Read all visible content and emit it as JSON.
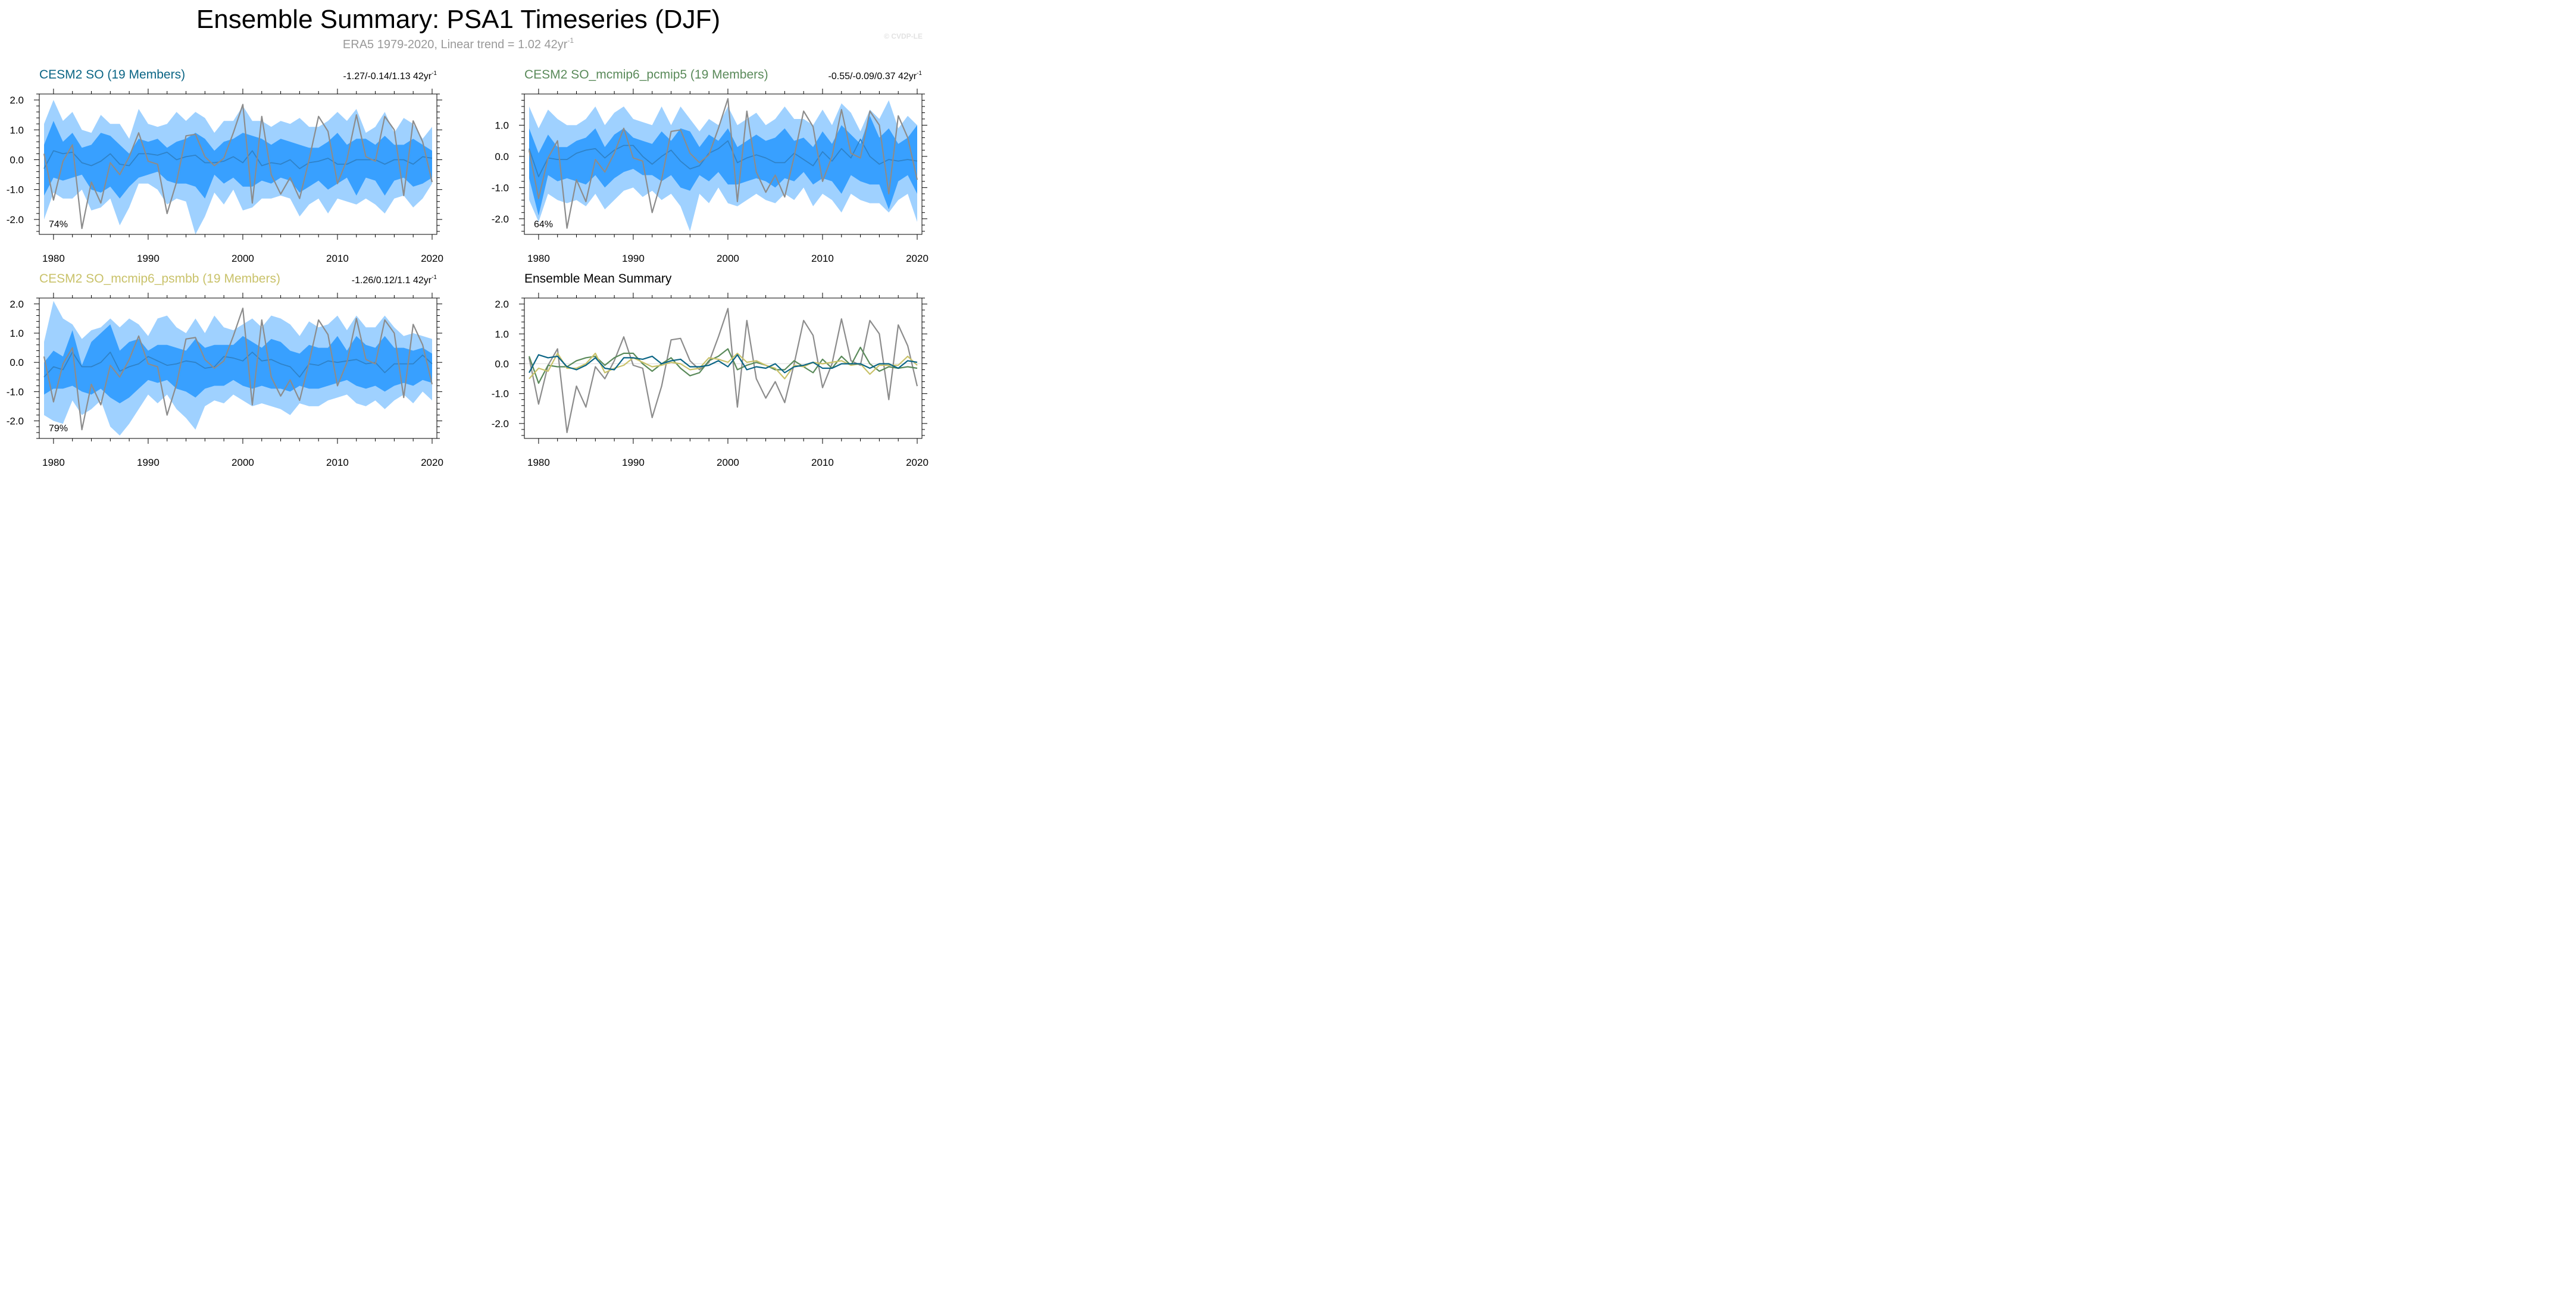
{
  "title": "Ensemble Summary: PSA1 Timeseries (DJF)",
  "subtitle_main": "ERA5 1979-2020, Linear trend = 1.02 42yr",
  "subtitle_sup": "-1",
  "watermark": "© CVDP-LE",
  "colors": {
    "outer_band": "#9fd1ff",
    "inner_band": "#38a0ff",
    "ens_mean": "#2f82c8",
    "obs": "#8c8c8c",
    "so": "#0b6585",
    "pcmip5": "#5a8a5a",
    "psmbb": "#c9c26a",
    "axis": "#000000"
  },
  "chart_data": [
    {
      "id": "so",
      "type": "area",
      "title": "CESM2 SO (19 Members)",
      "title_color": "#0b6585",
      "trend_main": "-1.27/-0.14/1.13 42yr",
      "trend_sup": "-1",
      "percent_label": "74%",
      "years": [
        1979,
        1980,
        1981,
        1982,
        1983,
        1984,
        1985,
        1986,
        1987,
        1988,
        1989,
        1990,
        1991,
        1992,
        1993,
        1994,
        1995,
        1996,
        1997,
        1998,
        1999,
        2000,
        2001,
        2002,
        2003,
        2004,
        2005,
        2006,
        2007,
        2008,
        2009,
        2010,
        2011,
        2012,
        2013,
        2014,
        2015,
        2016,
        2017,
        2018,
        2019,
        2020
      ],
      "ylim": [
        -2.5,
        2.2
      ],
      "yticks": [
        2.0,
        1.0,
        0.0,
        -1.0,
        -2.0
      ],
      "ytick_labels": [
        "2.0",
        "1.0",
        "0.0",
        "-1.0",
        "-2.0"
      ],
      "xticks": [
        1980,
        1990,
        2000,
        2010,
        2020
      ],
      "xtick_labels": [
        "1980",
        "1990",
        "2000",
        "2010",
        "2020"
      ],
      "outer_upper": [
        1.2,
        2.0,
        1.3,
        1.6,
        1.0,
        0.9,
        1.5,
        1.2,
        1.2,
        0.7,
        1.7,
        1.2,
        1.1,
        1.2,
        1.6,
        1.3,
        1.6,
        1.4,
        0.9,
        1.3,
        1.3,
        1.8,
        1.3,
        1.3,
        1.1,
        1.3,
        1.2,
        1.4,
        1.1,
        1.1,
        1.3,
        1.6,
        1.3,
        1.7,
        0.9,
        1.1,
        1.6,
        0.9,
        1.4,
        1.2,
        0.7,
        1.1
      ],
      "outer_lower": [
        -2.0,
        -1.1,
        -1.3,
        -1.3,
        -1.0,
        -1.7,
        -1.6,
        -1.3,
        -2.2,
        -1.6,
        -0.8,
        -0.8,
        -1.0,
        -1.5,
        -1.3,
        -1.4,
        -2.5,
        -1.9,
        -1.1,
        -1.5,
        -1.0,
        -1.7,
        -1.6,
        -1.3,
        -1.3,
        -1.2,
        -1.3,
        -1.9,
        -1.5,
        -1.3,
        -1.8,
        -1.3,
        -1.4,
        -1.5,
        -1.3,
        -1.5,
        -1.8,
        -1.3,
        -1.2,
        -1.6,
        -1.3,
        -0.8
      ],
      "inner_upper": [
        0.5,
        1.3,
        0.6,
        0.9,
        0.4,
        0.5,
        0.9,
        0.8,
        0.5,
        0.2,
        0.7,
        0.6,
        0.7,
        0.4,
        0.6,
        0.7,
        0.9,
        0.7,
        0.3,
        0.6,
        0.7,
        0.9,
        0.8,
        0.7,
        0.5,
        0.7,
        0.6,
        0.5,
        0.4,
        0.4,
        0.6,
        0.9,
        0.5,
        0.7,
        0.7,
        0.5,
        0.8,
        0.5,
        0.5,
        0.7,
        0.5,
        0.3
      ],
      "inner_lower": [
        -1.2,
        -0.6,
        -0.7,
        -0.6,
        -0.5,
        -1.0,
        -1.1,
        -0.9,
        -1.3,
        -0.9,
        -0.6,
        -0.5,
        -0.4,
        -0.7,
        -0.8,
        -0.8,
        -0.9,
        -1.3,
        -0.5,
        -0.8,
        -0.6,
        -0.9,
        -0.9,
        -0.7,
        -0.8,
        -0.6,
        -0.7,
        -1.1,
        -0.9,
        -0.7,
        -1.0,
        -0.8,
        -0.6,
        -1.2,
        -0.6,
        -0.7,
        -1.2,
        -0.7,
        -0.6,
        -0.9,
        -0.8,
        -0.6
      ],
      "ens_mean": [
        -0.3,
        0.3,
        0.2,
        0.25,
        -0.1,
        -0.2,
        -0.05,
        0.2,
        -0.15,
        -0.2,
        0.2,
        0.2,
        0.15,
        0.25,
        0.0,
        0.1,
        0.15,
        -0.1,
        -0.1,
        -0.05,
        0.1,
        -0.1,
        0.3,
        -0.2,
        -0.1,
        -0.15,
        0.0,
        -0.3,
        -0.1,
        -0.05,
        0.05,
        -0.15,
        -0.15,
        0.0,
        0.0,
        0.0,
        -0.15,
        0.0,
        0.0,
        -0.15,
        0.1,
        0.05
      ],
      "obs": [
        0.2,
        -1.35,
        -0.05,
        0.5,
        -2.3,
        -0.75,
        -1.45,
        -0.1,
        -0.5,
        0.1,
        0.9,
        -0.05,
        -0.15,
        -1.8,
        -0.75,
        0.8,
        0.85,
        0.1,
        -0.2,
        0.05,
        0.9,
        1.85,
        -1.45,
        1.45,
        -0.5,
        -1.15,
        -0.6,
        -1.3,
        0.0,
        1.45,
        0.95,
        -0.8,
        0.0,
        1.5,
        0.1,
        -0.05,
        1.45,
        1.0,
        -1.2,
        1.3,
        0.6,
        -0.75
      ]
    },
    {
      "id": "pcmip5",
      "type": "area",
      "title": "CESM2 SO_mcmip6_pcmip5 (19 Members)",
      "title_color": "#5a8a5a",
      "trend_main": "-0.55/-0.09/0.37 42yr",
      "trend_sup": "-1",
      "percent_label": "64%",
      "years": [
        1979,
        1980,
        1981,
        1982,
        1983,
        1984,
        1985,
        1986,
        1987,
        1988,
        1989,
        1990,
        1991,
        1992,
        1993,
        1994,
        1995,
        1996,
        1997,
        1998,
        1999,
        2000,
        2001,
        2002,
        2003,
        2004,
        2005,
        2006,
        2007,
        2008,
        2009,
        2010,
        2011,
        2012,
        2013,
        2014,
        2015,
        2016,
        2017,
        2018,
        2019,
        2020
      ],
      "ylim": [
        -2.5,
        2.0
      ],
      "yticks": [
        1.0,
        0.0,
        -1.0,
        -2.0
      ],
      "ytick_labels": [
        "1.0",
        "0.0",
        "-1.0",
        "-2.0"
      ],
      "xticks": [
        1980,
        1990,
        2000,
        2010,
        2020
      ],
      "xtick_labels": [
        "1980",
        "1990",
        "2000",
        "2010",
        "2020"
      ],
      "outer_upper": [
        1.6,
        0.9,
        1.5,
        1.2,
        1.0,
        1.0,
        1.2,
        1.6,
        1.0,
        1.4,
        1.6,
        1.2,
        1.1,
        1.0,
        1.6,
        1.0,
        1.6,
        1.2,
        0.8,
        1.2,
        1.0,
        1.6,
        1.0,
        1.2,
        1.4,
        1.0,
        1.2,
        1.6,
        1.2,
        1.2,
        1.0,
        1.5,
        1.0,
        1.7,
        1.4,
        0.8,
        1.5,
        1.2,
        1.8,
        0.9,
        1.3,
        1.0
      ],
      "outer_lower": [
        -1.4,
        -2.1,
        -1.2,
        -1.4,
        -1.5,
        -1.4,
        -1.6,
        -1.2,
        -1.7,
        -1.4,
        -1.1,
        -1.0,
        -1.3,
        -1.1,
        -1.4,
        -1.2,
        -1.6,
        -2.4,
        -1.2,
        -1.5,
        -1.0,
        -1.5,
        -1.6,
        -1.4,
        -1.2,
        -1.4,
        -1.5,
        -1.2,
        -1.4,
        -1.0,
        -1.6,
        -1.2,
        -1.4,
        -1.8,
        -1.2,
        -1.4,
        -1.5,
        -1.5,
        -1.8,
        -1.4,
        -1.2,
        -2.1
      ],
      "inner_upper": [
        0.9,
        0.1,
        0.7,
        0.3,
        0.3,
        0.5,
        0.6,
        0.9,
        0.3,
        0.7,
        0.9,
        0.6,
        0.5,
        0.4,
        0.8,
        0.5,
        0.9,
        0.8,
        0.3,
        0.7,
        0.5,
        0.9,
        0.3,
        0.5,
        0.7,
        0.5,
        0.6,
        0.9,
        0.5,
        0.6,
        0.3,
        0.8,
        0.4,
        1.0,
        0.7,
        0.4,
        1.3,
        0.6,
        0.9,
        0.4,
        0.6,
        1.0
      ],
      "inner_lower": [
        -0.7,
        -1.9,
        -0.6,
        -0.8,
        -0.7,
        -0.8,
        -0.9,
        -0.6,
        -1.0,
        -0.7,
        -0.5,
        -0.4,
        -0.6,
        -0.6,
        -0.8,
        -0.6,
        -1.0,
        -1.1,
        -0.6,
        -0.8,
        -0.5,
        -0.9,
        -0.9,
        -0.8,
        -0.7,
        -0.8,
        -1.0,
        -0.7,
        -0.8,
        -0.5,
        -0.9,
        -0.7,
        -0.8,
        -1.2,
        -0.6,
        -0.8,
        -0.9,
        -0.9,
        -1.7,
        -0.8,
        -0.6,
        -1.2
      ],
      "ens_mean": [
        0.25,
        -0.65,
        -0.05,
        -0.1,
        -0.1,
        0.1,
        0.2,
        0.25,
        -0.05,
        0.2,
        0.35,
        0.35,
        0.0,
        -0.25,
        0.0,
        0.2,
        -0.15,
        -0.4,
        -0.3,
        0.1,
        0.25,
        0.5,
        -0.2,
        -0.05,
        0.05,
        -0.05,
        -0.2,
        -0.2,
        0.1,
        -0.1,
        -0.3,
        0.15,
        -0.15,
        0.25,
        -0.05,
        0.55,
        0.0,
        -0.25,
        -0.1,
        -0.15,
        -0.1,
        -0.15
      ],
      "obs": [
        0.2,
        -1.35,
        -0.05,
        0.5,
        -2.3,
        -0.75,
        -1.45,
        -0.1,
        -0.5,
        0.1,
        0.9,
        -0.05,
        -0.15,
        -1.8,
        -0.75,
        0.8,
        0.85,
        0.1,
        -0.2,
        0.05,
        0.9,
        1.85,
        -1.45,
        1.45,
        -0.5,
        -1.15,
        -0.6,
        -1.3,
        0.0,
        1.45,
        0.95,
        -0.8,
        0.0,
        1.5,
        0.1,
        -0.05,
        1.45,
        1.0,
        -1.2,
        1.3,
        0.6,
        -0.75
      ]
    },
    {
      "id": "psmbb",
      "type": "area",
      "title": "CESM2 SO_mcmip6_psmbb (19 Members)",
      "title_color": "#c9c26a",
      "trend_main": "-1.26/0.12/1.1 42yr",
      "trend_sup": "-1",
      "percent_label": "79%",
      "years": [
        1979,
        1980,
        1981,
        1982,
        1983,
        1984,
        1985,
        1986,
        1987,
        1988,
        1989,
        1990,
        1991,
        1992,
        1993,
        1994,
        1995,
        1996,
        1997,
        1998,
        1999,
        2000,
        2001,
        2002,
        2003,
        2004,
        2005,
        2006,
        2007,
        2008,
        2009,
        2010,
        2011,
        2012,
        2013,
        2014,
        2015,
        2016,
        2017,
        2018,
        2019,
        2020
      ],
      "ylim": [
        -2.6,
        2.2
      ],
      "yticks": [
        2.0,
        1.0,
        0.0,
        -1.0,
        -2.0
      ],
      "ytick_labels": [
        "2.0",
        "1.0",
        "0.0",
        "-1.0",
        "-2.0"
      ],
      "xticks": [
        1980,
        1990,
        2000,
        2010,
        2020
      ],
      "xtick_labels": [
        "1980",
        "1990",
        "2000",
        "2010",
        "2020"
      ],
      "outer_upper": [
        0.7,
        2.1,
        1.5,
        1.3,
        0.8,
        1.1,
        1.2,
        1.5,
        1.2,
        1.5,
        1.3,
        0.9,
        1.5,
        1.6,
        1.2,
        1.0,
        1.5,
        1.0,
        1.6,
        1.2,
        1.1,
        1.3,
        1.5,
        1.2,
        1.6,
        1.5,
        1.3,
        0.9,
        1.4,
        1.2,
        1.3,
        1.6,
        1.1,
        1.6,
        1.2,
        1.2,
        1.6,
        1.2,
        0.9,
        1.0,
        0.9,
        0.8
      ],
      "outer_lower": [
        -1.8,
        -2.0,
        -2.1,
        -1.3,
        -1.8,
        -1.6,
        -1.3,
        -2.2,
        -2.5,
        -2.1,
        -1.6,
        -1.1,
        -1.4,
        -1.1,
        -1.6,
        -1.9,
        -2.3,
        -1.5,
        -1.3,
        -1.4,
        -1.1,
        -1.3,
        -1.5,
        -1.4,
        -1.5,
        -1.6,
        -1.8,
        -1.4,
        -1.5,
        -1.5,
        -1.3,
        -1.2,
        -1.1,
        -1.4,
        -1.5,
        -1.3,
        -1.6,
        -1.3,
        -1.1,
        -1.4,
        -1.0,
        -1.3
      ],
      "inner_upper": [
        0.0,
        0.4,
        0.2,
        1.1,
        -0.1,
        0.7,
        1.0,
        1.3,
        0.4,
        0.7,
        0.8,
        0.4,
        0.6,
        0.6,
        0.5,
        0.4,
        0.8,
        0.5,
        0.6,
        0.6,
        0.6,
        0.9,
        0.7,
        0.5,
        0.8,
        0.7,
        0.4,
        0.3,
        0.6,
        0.5,
        0.5,
        0.9,
        0.4,
        0.9,
        0.6,
        0.5,
        0.9,
        0.5,
        0.5,
        0.4,
        0.5,
        0.3
      ],
      "inner_lower": [
        -1.1,
        -0.9,
        -0.9,
        -0.8,
        -1.0,
        -1.1,
        -0.9,
        -1.2,
        -1.4,
        -1.2,
        -0.9,
        -0.6,
        -0.7,
        -0.6,
        -0.9,
        -1.0,
        -1.2,
        -0.9,
        -0.8,
        -0.8,
        -0.6,
        -0.8,
        -0.9,
        -0.8,
        -0.9,
        -0.9,
        -1.0,
        -0.8,
        -0.9,
        -0.9,
        -0.8,
        -0.7,
        -0.6,
        -0.8,
        -0.9,
        -0.8,
        -1.0,
        -0.8,
        -0.7,
        -0.8,
        -0.6,
        -0.7
      ],
      "ens_mean": [
        -0.5,
        -0.15,
        -0.25,
        0.35,
        -0.15,
        -0.15,
        0.0,
        0.35,
        -0.3,
        -0.15,
        -0.05,
        0.2,
        0.05,
        -0.1,
        -0.05,
        0.05,
        0.0,
        -0.2,
        -0.15,
        0.2,
        0.15,
        0.05,
        0.35,
        0.05,
        0.1,
        -0.05,
        -0.15,
        -0.5,
        -0.05,
        -0.1,
        0.05,
        0.0,
        0.05,
        0.1,
        -0.05,
        0.0,
        -0.35,
        -0.05,
        -0.05,
        -0.05,
        0.25,
        -0.05
      ],
      "obs": [
        0.2,
        -1.35,
        -0.05,
        0.5,
        -2.3,
        -0.75,
        -1.45,
        -0.1,
        -0.5,
        0.1,
        0.9,
        -0.05,
        -0.15,
        -1.8,
        -0.75,
        0.8,
        0.85,
        0.1,
        -0.2,
        0.05,
        0.9,
        1.85,
        -1.45,
        1.45,
        -0.5,
        -1.15,
        -0.6,
        -1.3,
        0.0,
        1.45,
        0.95,
        -0.8,
        0.0,
        1.5,
        0.1,
        -0.05,
        1.45,
        1.0,
        -1.2,
        1.3,
        0.6,
        -0.75
      ]
    },
    {
      "id": "summary",
      "type": "line",
      "title": "Ensemble Mean Summary",
      "title_color": "#000000",
      "years": [
        1979,
        1980,
        1981,
        1982,
        1983,
        1984,
        1985,
        1986,
        1987,
        1988,
        1989,
        1990,
        1991,
        1992,
        1993,
        1994,
        1995,
        1996,
        1997,
        1998,
        1999,
        2000,
        2001,
        2002,
        2003,
        2004,
        2005,
        2006,
        2007,
        2008,
        2009,
        2010,
        2011,
        2012,
        2013,
        2014,
        2015,
        2016,
        2017,
        2018,
        2019,
        2020
      ],
      "ylim": [
        -2.5,
        2.2
      ],
      "yticks": [
        2.0,
        1.0,
        0.0,
        -1.0,
        -2.0
      ],
      "ytick_labels": [
        "2.0",
        "1.0",
        "0.0",
        "-1.0",
        "-2.0"
      ],
      "xticks": [
        1980,
        1990,
        2000,
        2010,
        2020
      ],
      "xtick_labels": [
        "1980",
        "1990",
        "2000",
        "2010",
        "2020"
      ],
      "series": [
        {
          "name": "ERA5",
          "color": "#8c8c8c",
          "values": [
            0.2,
            -1.35,
            -0.05,
            0.5,
            -2.3,
            -0.75,
            -1.45,
            -0.1,
            -0.5,
            0.1,
            0.9,
            -0.05,
            -0.15,
            -1.8,
            -0.75,
            0.8,
            0.85,
            0.1,
            -0.2,
            0.05,
            0.9,
            1.85,
            -1.45,
            1.45,
            -0.5,
            -1.15,
            -0.6,
            -1.3,
            0.0,
            1.45,
            0.95,
            -0.8,
            0.0,
            1.5,
            0.1,
            -0.05,
            1.45,
            1.0,
            -1.2,
            1.3,
            0.6,
            -0.75
          ]
        },
        {
          "name": "CESM2 SO_mcmip6_pcmip5",
          "color": "#5a8a5a",
          "values": [
            0.25,
            -0.65,
            -0.05,
            -0.1,
            -0.1,
            0.1,
            0.2,
            0.25,
            -0.05,
            0.2,
            0.35,
            0.35,
            0.0,
            -0.25,
            0.0,
            0.2,
            -0.15,
            -0.4,
            -0.3,
            0.1,
            0.25,
            0.5,
            -0.2,
            -0.05,
            0.05,
            -0.05,
            -0.2,
            -0.2,
            0.1,
            -0.1,
            -0.3,
            0.15,
            -0.15,
            0.25,
            -0.05,
            0.55,
            0.0,
            -0.25,
            -0.1,
            -0.15,
            -0.1,
            -0.15
          ]
        },
        {
          "name": "CESM2 SO_mcmip6_psmbb",
          "color": "#c9c26a",
          "values": [
            -0.5,
            -0.15,
            -0.25,
            0.35,
            -0.15,
            -0.15,
            0.0,
            0.35,
            -0.3,
            -0.15,
            -0.05,
            0.2,
            0.05,
            -0.1,
            -0.05,
            0.05,
            0.0,
            -0.2,
            -0.15,
            0.2,
            0.15,
            0.05,
            0.35,
            0.05,
            0.1,
            -0.05,
            -0.15,
            -0.5,
            -0.05,
            -0.1,
            0.05,
            0.0,
            0.05,
            0.1,
            -0.05,
            0.0,
            -0.35,
            -0.05,
            -0.05,
            -0.05,
            0.25,
            -0.05
          ]
        },
        {
          "name": "CESM2 SO",
          "color": "#0b6585",
          "values": [
            -0.3,
            0.3,
            0.2,
            0.25,
            -0.1,
            -0.2,
            -0.05,
            0.2,
            -0.15,
            -0.2,
            0.2,
            0.2,
            0.15,
            0.25,
            0.0,
            0.1,
            0.15,
            -0.1,
            -0.1,
            -0.05,
            0.1,
            -0.1,
            0.3,
            -0.2,
            -0.1,
            -0.15,
            0.0,
            -0.3,
            -0.1,
            -0.05,
            0.05,
            -0.15,
            -0.15,
            0.0,
            0.0,
            0.0,
            -0.15,
            0.0,
            0.0,
            -0.15,
            0.1,
            0.05
          ]
        }
      ]
    }
  ]
}
